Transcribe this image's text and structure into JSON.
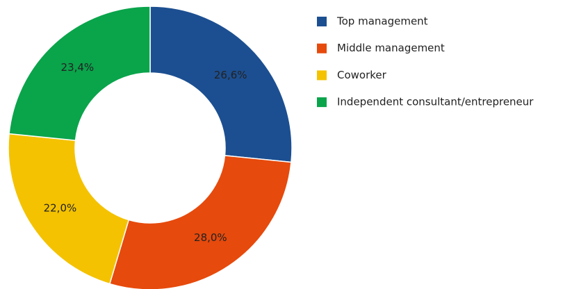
{
  "chart_data": {
    "type": "donut",
    "categories": [
      "Top management",
      "Middle management",
      "Coworker",
      "Independent consultant/entrepreneur"
    ],
    "values": [
      26.6,
      28.0,
      22.0,
      23.4
    ],
    "value_labels": [
      "26,6%",
      "28,0%",
      "22,0%",
      "23,4%"
    ],
    "colors": [
      "#1c4f91",
      "#e64a0c",
      "#f4c200",
      "#0aa44b"
    ],
    "legend": "right"
  }
}
